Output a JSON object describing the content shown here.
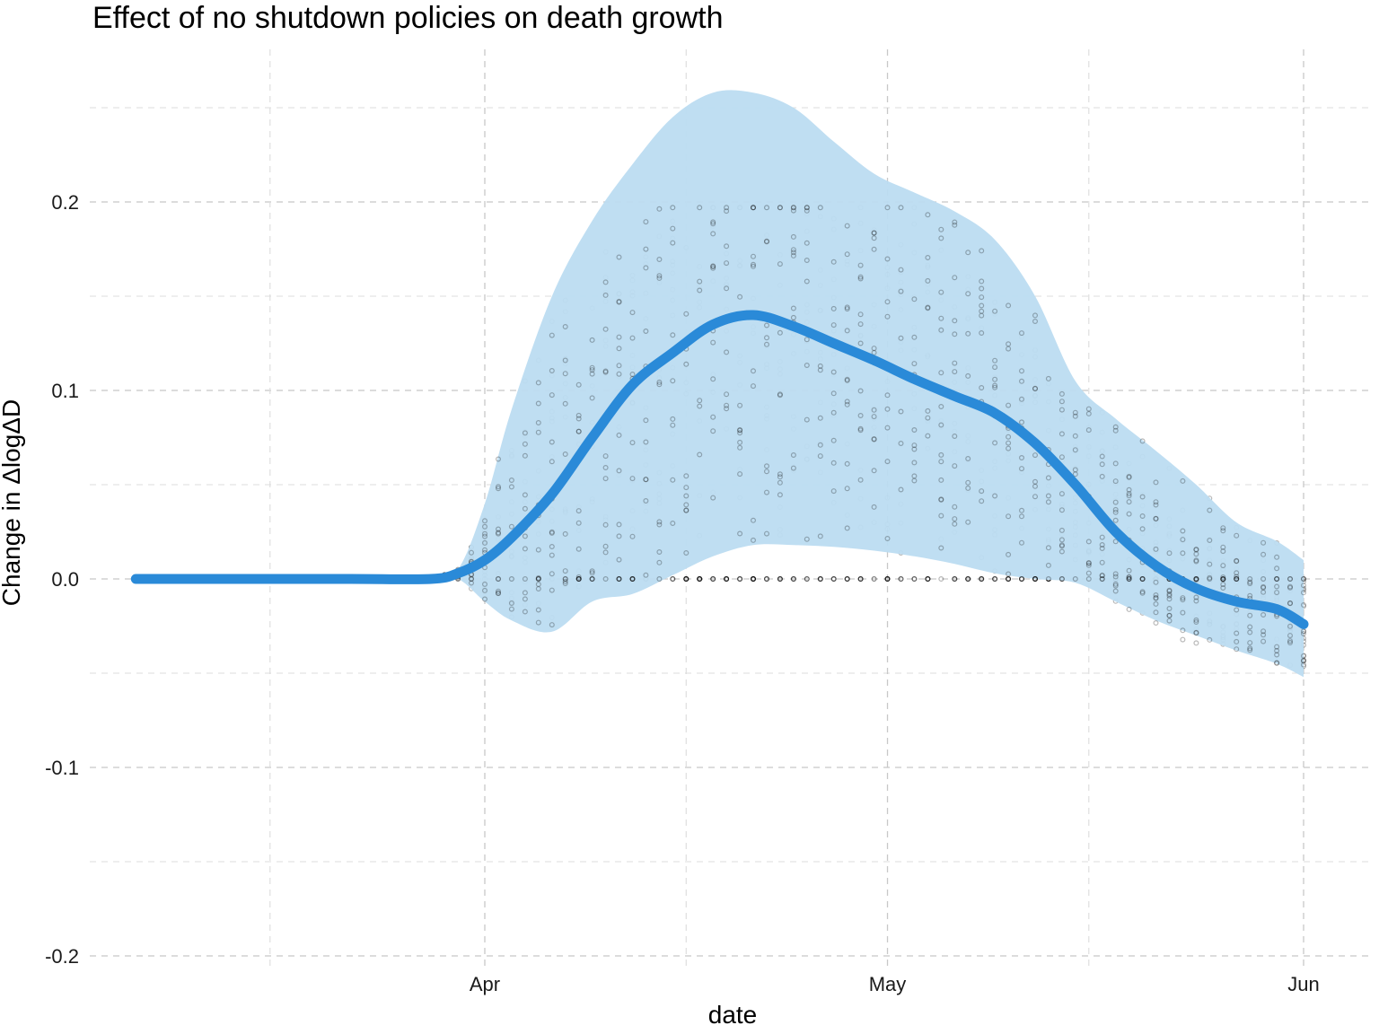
{
  "chart_data": {
    "type": "line",
    "title": "Effect of no shutdown policies on death growth",
    "xlabel": "date",
    "ylabel": "Change in ΔlogΔD",
    "x_ticks": [
      {
        "date": "2020-04-01",
        "label": "Apr"
      },
      {
        "date": "2020-05-01",
        "label": "May"
      },
      {
        "date": "2020-06-01",
        "label": "Jun"
      }
    ],
    "y_ticks": [
      {
        "value": -0.2,
        "label": "-0.2"
      },
      {
        "value": -0.1,
        "label": "-0.1"
      },
      {
        "value": 0.0,
        "label": "0.0"
      },
      {
        "value": 0.1,
        "label": "0.1"
      },
      {
        "value": 0.2,
        "label": "0.2"
      }
    ],
    "xlim": [
      "2020-03-06",
      "2020-06-03"
    ],
    "ylim": [
      -0.2,
      0.25
    ],
    "grid": true,
    "colors": {
      "line": "#2a8ad8",
      "band": "#bcdcf1",
      "points": "#000000"
    },
    "series": [
      {
        "x": [
          "2020-03-06",
          "2020-03-14",
          "2020-03-22",
          "2020-03-28",
          "2020-03-30",
          "2020-04-01",
          "2020-04-03",
          "2020-04-06",
          "2020-04-09",
          "2020-04-12",
          "2020-04-15",
          "2020-04-18",
          "2020-04-21",
          "2020-04-24",
          "2020-04-27",
          "2020-04-30",
          "2020-05-03",
          "2020-05-06",
          "2020-05-09",
          "2020-05-12",
          "2020-05-15",
          "2020-05-18",
          "2020-05-21",
          "2020-05-24",
          "2020-05-27",
          "2020-05-30",
          "2020-06-01"
        ],
        "y": [
          0.0,
          0.0,
          0.0,
          0.0,
          0.003,
          0.01,
          0.022,
          0.045,
          0.075,
          0.103,
          0.12,
          0.135,
          0.14,
          0.134,
          0.125,
          0.116,
          0.106,
          0.097,
          0.088,
          0.072,
          0.05,
          0.025,
          0.007,
          -0.005,
          -0.012,
          -0.016,
          -0.024
        ]
      }
    ],
    "confidence_band": {
      "x": [
        "2020-03-28",
        "2020-03-30",
        "2020-04-01",
        "2020-04-03",
        "2020-04-06",
        "2020-04-09",
        "2020-04-12",
        "2020-04-15",
        "2020-04-18",
        "2020-04-21",
        "2020-04-24",
        "2020-04-27",
        "2020-04-30",
        "2020-05-03",
        "2020-05-06",
        "2020-05-09",
        "2020-05-12",
        "2020-05-15",
        "2020-05-18",
        "2020-05-21",
        "2020-05-24",
        "2020-05-27",
        "2020-05-30",
        "2020-06-01"
      ],
      "lower": [
        0.0,
        0.0,
        -0.012,
        -0.022,
        -0.028,
        -0.012,
        -0.008,
        0.002,
        0.012,
        0.018,
        0.018,
        0.017,
        0.015,
        0.012,
        0.008,
        0.003,
        0.0,
        -0.002,
        -0.012,
        -0.022,
        -0.03,
        -0.038,
        -0.045,
        -0.052
      ],
      "upper": [
        0.0,
        0.005,
        0.04,
        0.09,
        0.15,
        0.19,
        0.22,
        0.245,
        0.258,
        0.258,
        0.25,
        0.232,
        0.215,
        0.205,
        0.195,
        0.18,
        0.15,
        0.105,
        0.085,
        0.068,
        0.05,
        0.03,
        0.02,
        0.01
      ]
    },
    "scatter_summary": {
      "description_of_points": "state-level daily estimates plotted as small translucent grey dots",
      "point_date_range": [
        "2020-03-29",
        "2020-06-01"
      ]
    }
  }
}
